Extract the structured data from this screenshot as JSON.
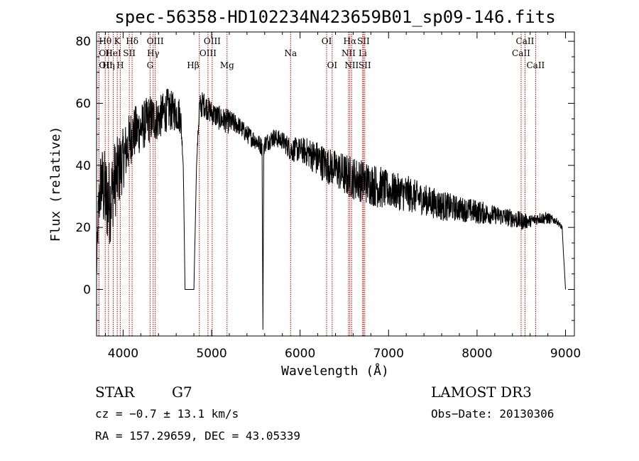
{
  "chart_data": {
    "type": "line",
    "title": "spec-56358-HD102234N423659B01_sp09-146.fits",
    "xlabel": "Wavelength (Å)",
    "ylabel": "Flux (relative)",
    "xlim": [
      3700,
      9100
    ],
    "ylim": [
      -15,
      83
    ],
    "x_ticks": [
      4000,
      5000,
      6000,
      7000,
      8000,
      9000
    ],
    "y_ticks": [
      0,
      20,
      40,
      60,
      80
    ],
    "line_color": "#000000",
    "marker_color": "#c00000",
    "spectrum_anchors": {
      "x": [
        3700,
        3720,
        3750,
        3800,
        3850,
        3900,
        3950,
        4000,
        4100,
        4200,
        4300,
        4400,
        4500,
        4600,
        4650,
        4680,
        4700,
        4800,
        4830,
        4860,
        4900,
        5000,
        5100,
        5200,
        5300,
        5400,
        5500,
        5570,
        5580,
        5590,
        5600,
        5700,
        5800,
        5900,
        6000,
        6100,
        6200,
        6300,
        6400,
        6500,
        6600,
        6700,
        6800,
        6900,
        7000,
        7200,
        7400,
        7600,
        7800,
        8000,
        8200,
        8400,
        8500,
        8600,
        8700,
        8800,
        8900,
        8960,
        8980,
        9000
      ],
      "y": [
        5,
        25,
        35,
        30,
        28,
        35,
        38,
        42,
        50,
        52,
        55,
        55,
        58,
        57,
        56,
        40,
        0,
        0,
        40,
        58,
        60,
        57,
        55,
        54,
        53,
        50,
        48,
        46,
        -13,
        46,
        47,
        49,
        48,
        45,
        45,
        44,
        42,
        40,
        39,
        37,
        36,
        35,
        34,
        33,
        32,
        31,
        29,
        27,
        26,
        25,
        24,
        23,
        22,
        22,
        23,
        23,
        22,
        20,
        10,
        0
      ],
      "noise": [
        5,
        8,
        12,
        15,
        14,
        13,
        12,
        10,
        9,
        8,
        8,
        7,
        7,
        6,
        6,
        0,
        0,
        0,
        0,
        5,
        4,
        4,
        4,
        4,
        3,
        3,
        3,
        3,
        0,
        3,
        3,
        3,
        3,
        4,
        4,
        5,
        6,
        6,
        6,
        7,
        7,
        7,
        7,
        7,
        6,
        6,
        5,
        5,
        4,
        4,
        3,
        3,
        3,
        2,
        2,
        2,
        1,
        1,
        0,
        0
      ]
    },
    "spectral_lines": [
      {
        "label": "OII",
        "wavelength": 3727,
        "row": 1,
        "anchor": "start"
      },
      {
        "label": "OII",
        "wavelength": 3727,
        "row": 2,
        "anchor": "start"
      },
      {
        "label": "Hθ",
        "wavelength": 3798,
        "row": 0,
        "anchor": "middle"
      },
      {
        "label": "Hη",
        "wavelength": 3835,
        "row": 2,
        "anchor": "middle"
      },
      {
        "label": "HeI",
        "wavelength": 3889,
        "row": 1,
        "anchor": "middle"
      },
      {
        "label": "K",
        "wavelength": 3934,
        "row": 0,
        "anchor": "middle"
      },
      {
        "label": "H",
        "wavelength": 3968,
        "row": 2,
        "anchor": "middle"
      },
      {
        "label": "SII",
        "wavelength": 4070,
        "row": 1,
        "anchor": "middle"
      },
      {
        "label": "Hδ",
        "wavelength": 4102,
        "row": 0,
        "anchor": "middle"
      },
      {
        "label": "G",
        "wavelength": 4305,
        "row": 2,
        "anchor": "middle"
      },
      {
        "label": "Hγ",
        "wavelength": 4340,
        "row": 1,
        "anchor": "middle"
      },
      {
        "label": "OIII",
        "wavelength": 4363,
        "row": 0,
        "anchor": "middle"
      },
      {
        "label": "Hβ",
        "wavelength": 4861,
        "row": 2,
        "anchor": "end"
      },
      {
        "label": "OIII",
        "wavelength": 4959,
        "row": 1,
        "anchor": "middle"
      },
      {
        "label": "OIII",
        "wavelength": 5007,
        "row": 0,
        "anchor": "middle"
      },
      {
        "label": "Mg",
        "wavelength": 5175,
        "row": 2,
        "anchor": "middle"
      },
      {
        "label": "Na",
        "wavelength": 5893,
        "row": 1,
        "anchor": "middle"
      },
      {
        "label": "OI",
        "wavelength": 6300,
        "row": 0,
        "anchor": "middle"
      },
      {
        "label": "OI",
        "wavelength": 6363,
        "row": 2,
        "anchor": "middle"
      },
      {
        "label": "NII",
        "wavelength": 6548,
        "row": 1,
        "anchor": "middle"
      },
      {
        "label": "Hα",
        "wavelength": 6563,
        "row": 0,
        "anchor": "middle"
      },
      {
        "label": "NII",
        "wavelength": 6583,
        "row": 2,
        "anchor": "middle"
      },
      {
        "label": "Li",
        "wavelength": 6708,
        "row": 1,
        "anchor": "middle"
      },
      {
        "label": "SII",
        "wavelength": 6716,
        "row": 0,
        "anchor": "middle"
      },
      {
        "label": "SII",
        "wavelength": 6731,
        "row": 2,
        "anchor": "middle"
      },
      {
        "label": "CaII",
        "wavelength": 8498,
        "row": 1,
        "anchor": "middle"
      },
      {
        "label": "CaII",
        "wavelength": 8542,
        "row": 0,
        "anchor": "middle"
      },
      {
        "label": "CaII",
        "wavelength": 8662,
        "row": 2,
        "anchor": "middle"
      }
    ]
  },
  "info": {
    "object_class": "STAR",
    "subclass": "G7",
    "redshift": "cz = −0.7 ± 13.1 km/s",
    "coordinates": "RA = 157.29659, DEC =  43.05339",
    "survey": "LAMOST DR3",
    "obs_date": "Obs−Date: 20130306"
  }
}
